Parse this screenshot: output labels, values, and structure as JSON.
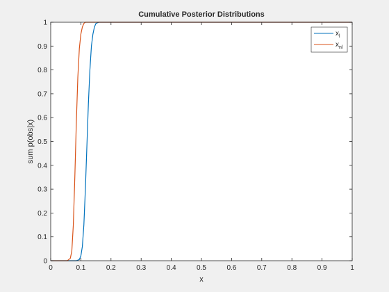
{
  "chart_data": {
    "type": "line",
    "title": "Cumulative Posterior Distributions",
    "xlabel": "x",
    "ylabel": "sum p(obs|x)",
    "xlim": [
      0,
      1
    ],
    "ylim": [
      0,
      1
    ],
    "xticks": [
      0,
      0.1,
      0.2,
      0.3,
      0.4,
      0.5,
      0.6,
      0.7,
      0.8,
      0.9,
      1
    ],
    "yticks": [
      0,
      0.1,
      0.2,
      0.3,
      0.4,
      0.5,
      0.6,
      0.7,
      0.8,
      0.9,
      1
    ],
    "xtick_labels": [
      "0",
      "0.1",
      "0.2",
      "0.3",
      "0.4",
      "0.5",
      "0.6",
      "0.7",
      "0.8",
      "0.9",
      "1"
    ],
    "ytick_labels": [
      "0",
      "0.1",
      "0.2",
      "0.3",
      "0.4",
      "0.5",
      "0.6",
      "0.7",
      "0.8",
      "0.9",
      "1"
    ],
    "grid": false,
    "legend_position": "top-right",
    "series": [
      {
        "name": "x",
        "name_subscript": "l",
        "color": "#0072BD",
        "x": [
          0,
          0.085,
          0.095,
          0.1,
          0.105,
          0.11,
          0.115,
          0.12,
          0.125,
          0.13,
          0.135,
          0.14,
          0.145,
          0.15,
          0.16,
          1
        ],
        "y": [
          0,
          0,
          0.005,
          0.02,
          0.06,
          0.15,
          0.3,
          0.48,
          0.66,
          0.8,
          0.9,
          0.95,
          0.98,
          0.995,
          1,
          1
        ]
      },
      {
        "name": "x",
        "name_subscript": "nl",
        "color": "#D95319",
        "x": [
          0,
          0.055,
          0.065,
          0.07,
          0.075,
          0.08,
          0.085,
          0.09,
          0.095,
          0.1,
          0.105,
          0.11,
          0.115,
          1
        ],
        "y": [
          0,
          0,
          0.01,
          0.04,
          0.15,
          0.35,
          0.58,
          0.77,
          0.89,
          0.95,
          0.98,
          0.995,
          1,
          1
        ]
      }
    ]
  }
}
